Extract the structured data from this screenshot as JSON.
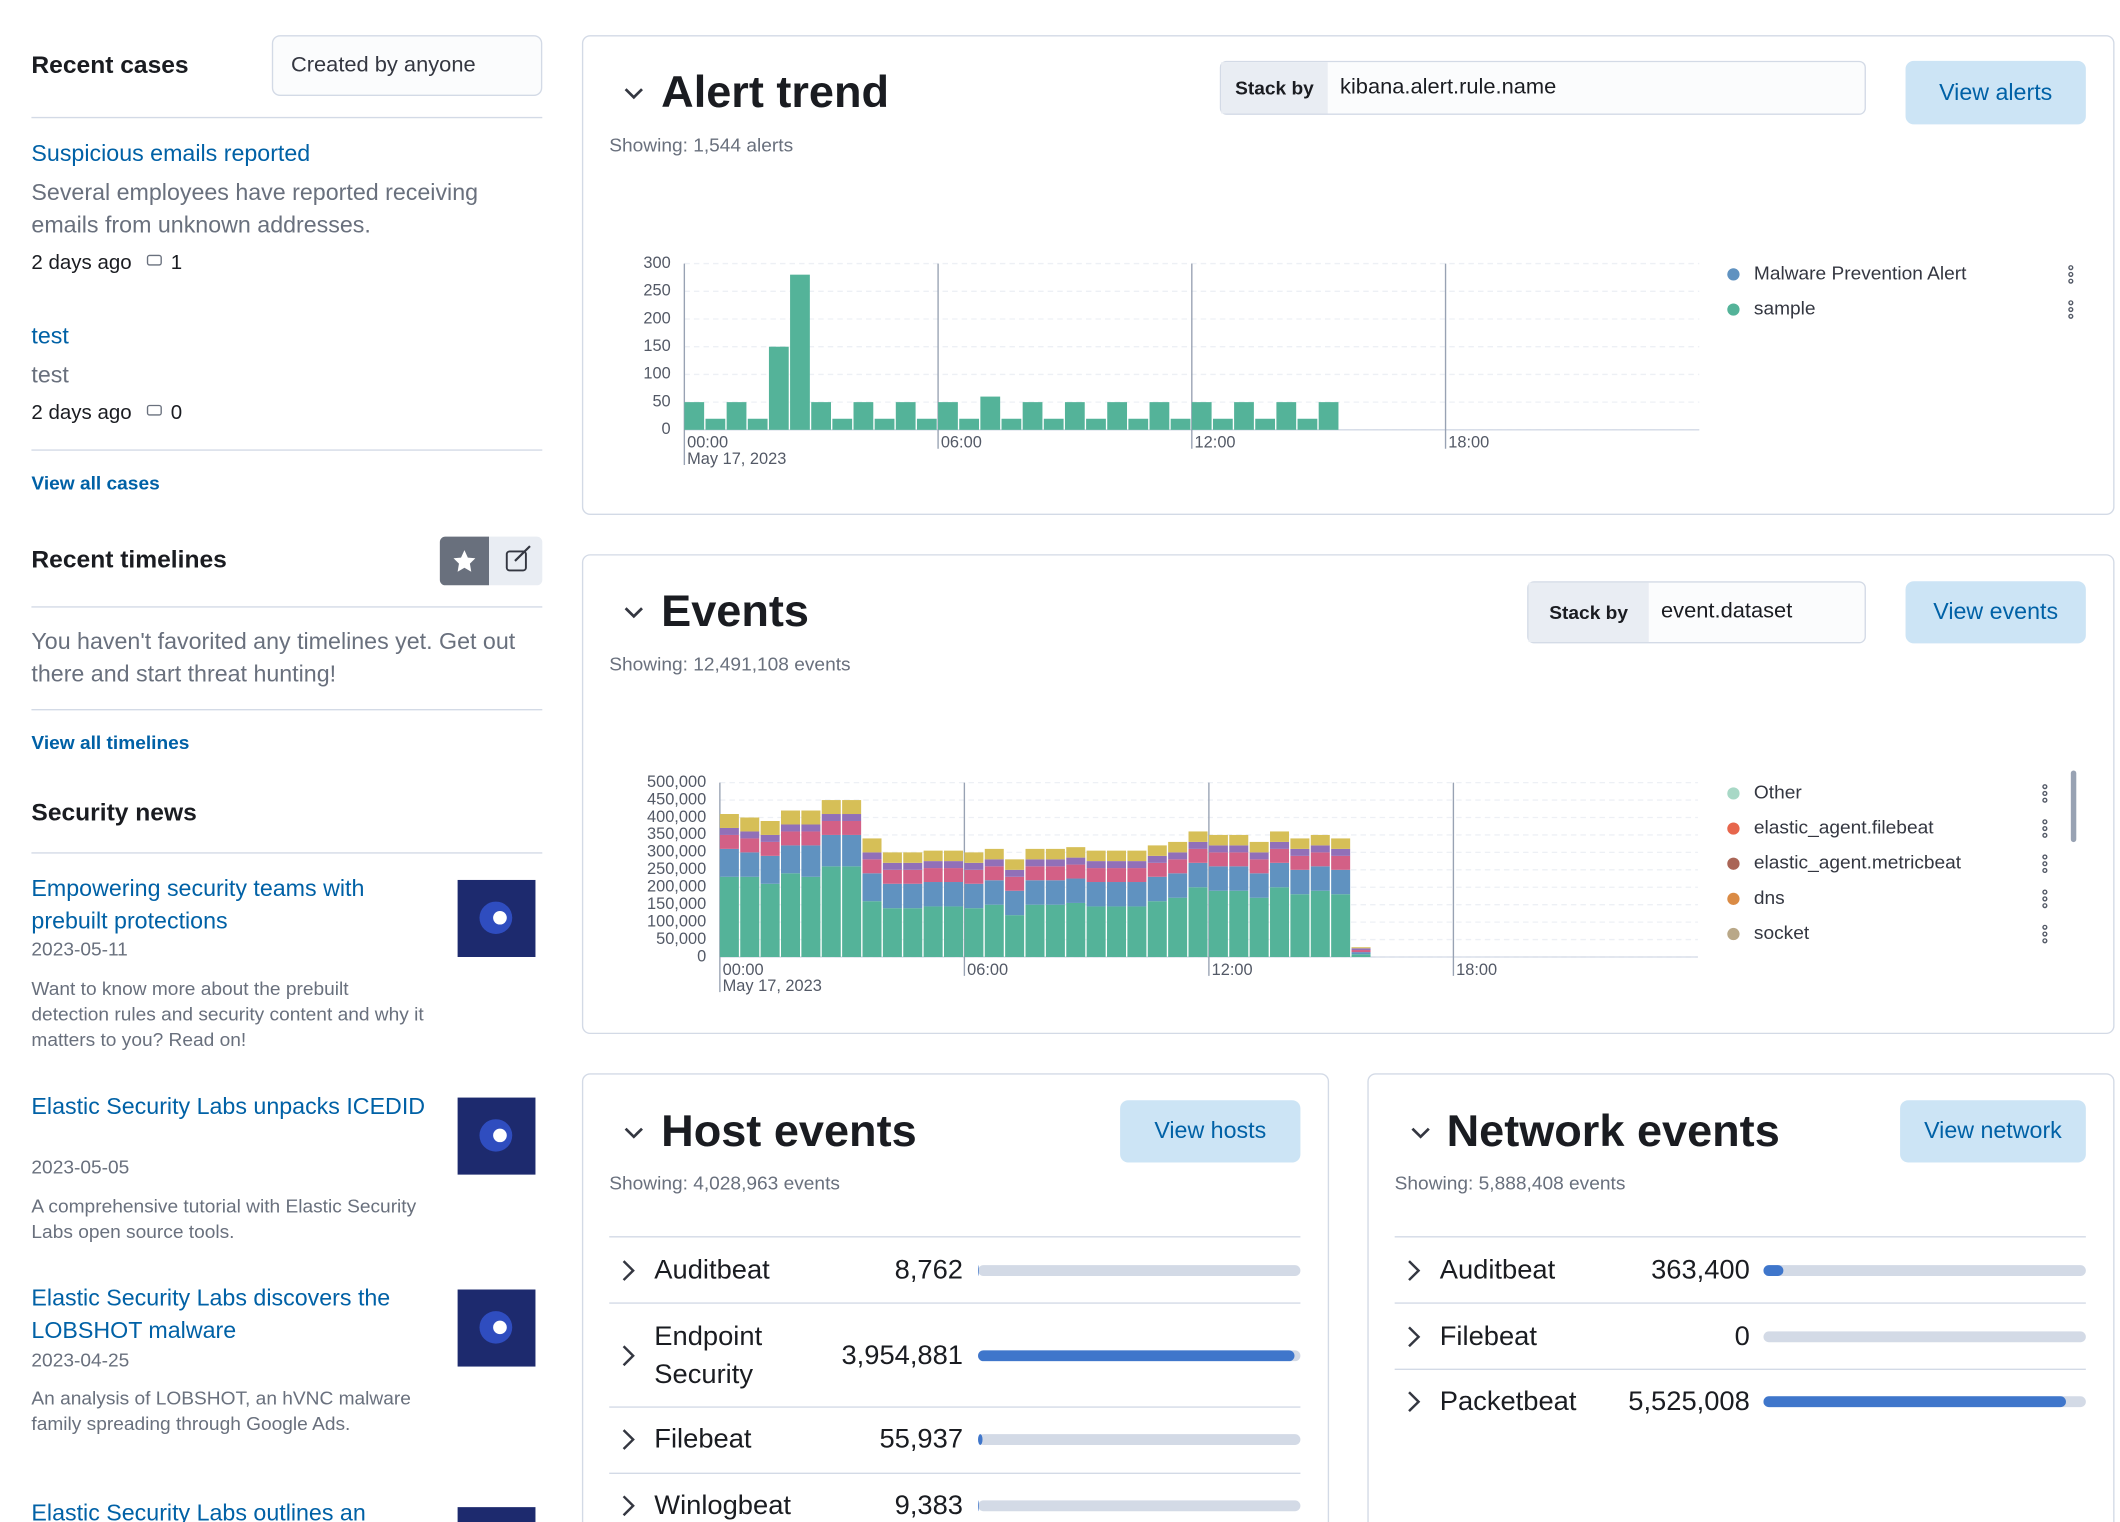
{
  "recent_cases": {
    "title": "Recent cases",
    "filter": "Created by anyone",
    "cases": [
      {
        "title": "Suspicious emails reported",
        "description": "Several employees have reported receiving emails from unknown addresses.",
        "age": "2 days ago",
        "comments": "1"
      },
      {
        "title": "test",
        "description": "test",
        "age": "2 days ago",
        "comments": "0"
      }
    ],
    "view_all": "View all cases"
  },
  "recent_timelines": {
    "title": "Recent timelines",
    "message": "You haven't favorited any timelines yet. Get out there and start threat hunting!",
    "view_all": "View all timelines"
  },
  "security_news": {
    "title": "Security news",
    "items": [
      {
        "title": "Empowering security teams with prebuilt protections",
        "date": "2023-05-11",
        "summary": "Want to know more about the prebuilt detection rules and security content and why it matters to you? Read on!"
      },
      {
        "title": "Elastic Security Labs unpacks ICEDID",
        "date": "2023-05-05",
        "summary": "A comprehensive tutorial with Elastic Security Labs open source tools."
      },
      {
        "title": "Elastic Security Labs discovers the LOBSHOT malware",
        "date": "2023-04-25",
        "summary": "An analysis of LOBSHOT, an hVNC malware family spreading through Google Ads."
      },
      {
        "title": "Elastic Security Labs outlines an"
      }
    ]
  },
  "alert_trend": {
    "type": "bar",
    "title": "Alert trend",
    "stack_by_label": "Stack by",
    "stack_by": "kibana.alert.rule.name",
    "button": "View alerts",
    "subtitle": "Showing: 1,544 alerts",
    "x": [
      0,
      0.5,
      1,
      1.5,
      2,
      2.5,
      3,
      3.5,
      4,
      4.5,
      5,
      5.5,
      6,
      6.5,
      7,
      7.5,
      8,
      8.5,
      9,
      9.5,
      10,
      10.5,
      11,
      11.5,
      12,
      12.5,
      13,
      13.5,
      14,
      14.5,
      15
    ],
    "series": [
      {
        "color": "#54b399",
        "values": [
          50,
          20,
          50,
          20,
          150,
          280,
          50,
          20,
          50,
          20,
          50,
          20,
          50,
          20,
          60,
          20,
          50,
          20,
          50,
          20,
          50,
          20,
          50,
          20,
          50,
          20,
          50,
          20,
          50,
          20,
          50
        ]
      }
    ],
    "legend": [
      {
        "name": "Malware Prevention Alert",
        "color": "#6092c0"
      },
      {
        "name": "sample",
        "color": "#54b399"
      }
    ],
    "xlim": [
      0,
      24
    ],
    "xticks": [
      {
        "value": 0,
        "label": "00:00"
      },
      {
        "value": 6,
        "label": "06:00"
      },
      {
        "value": 12,
        "label": "12:00"
      },
      {
        "value": 18,
        "label": "18:00"
      }
    ],
    "x_sublabel": "May 17, 2023",
    "ylim": [
      0,
      300
    ],
    "yticks": [
      0,
      50,
      100,
      150,
      200,
      250,
      300
    ]
  },
  "events": {
    "type": "stacked_bar",
    "title": "Events",
    "stack_by_label": "Stack by",
    "stack_by": "event.dataset",
    "button": "View events",
    "subtitle": "Showing: 12,491,108 events",
    "x": [
      0,
      0.5,
      1,
      1.5,
      2,
      2.5,
      3,
      3.5,
      4,
      4.5,
      5,
      5.5,
      6,
      6.5,
      7,
      7.5,
      8,
      8.5,
      9,
      9.5,
      10,
      10.5,
      11,
      11.5,
      12,
      12.5,
      13,
      13.5,
      14,
      14.5,
      15,
      15.5
    ],
    "series": [
      {
        "color": "#54b399",
        "values": [
          230000,
          230000,
          210000,
          240000,
          230000,
          260000,
          260000,
          160000,
          140000,
          140000,
          145000,
          145000,
          140000,
          150000,
          120000,
          150000,
          150000,
          155000,
          145000,
          145000,
          145000,
          160000,
          170000,
          200000,
          190000,
          190000,
          170000,
          200000,
          180000,
          190000,
          180000,
          8000
        ]
      },
      {
        "color": "#6092c0",
        "values": [
          80000,
          70000,
          80000,
          80000,
          90000,
          90000,
          90000,
          80000,
          70000,
          70000,
          70000,
          70000,
          70000,
          70000,
          70000,
          70000,
          70000,
          70000,
          70000,
          70000,
          70000,
          70000,
          70000,
          70000,
          70000,
          70000,
          70000,
          70000,
          70000,
          70000,
          70000,
          6000
        ]
      },
      {
        "color": "#d36086",
        "values": [
          40000,
          40000,
          40000,
          40000,
          40000,
          40000,
          40000,
          40000,
          40000,
          40000,
          40000,
          40000,
          40000,
          40000,
          40000,
          40000,
          40000,
          40000,
          40000,
          40000,
          40000,
          40000,
          40000,
          40000,
          40000,
          40000,
          40000,
          40000,
          40000,
          40000,
          40000,
          6000
        ]
      },
      {
        "color": "#9170b8",
        "values": [
          20000,
          20000,
          20000,
          20000,
          20000,
          20000,
          20000,
          20000,
          20000,
          20000,
          20000,
          20000,
          20000,
          20000,
          20000,
          20000,
          20000,
          20000,
          20000,
          20000,
          20000,
          20000,
          20000,
          20000,
          20000,
          20000,
          20000,
          20000,
          20000,
          20000,
          20000,
          5000
        ]
      },
      {
        "color": "#d6bf57",
        "values": [
          40000,
          40000,
          40000,
          40000,
          40000,
          40000,
          40000,
          40000,
          30000,
          30000,
          30000,
          30000,
          30000,
          30000,
          30000,
          30000,
          30000,
          30000,
          30000,
          30000,
          30000,
          30000,
          30000,
          30000,
          30000,
          30000,
          30000,
          30000,
          30000,
          30000,
          30000,
          3000
        ]
      }
    ],
    "legend": [
      {
        "name": "Other",
        "color": "#a8d8c6"
      },
      {
        "name": "elastic_agent.filebeat",
        "color": "#e7664c"
      },
      {
        "name": "elastic_agent.metricbeat",
        "color": "#aa6556"
      },
      {
        "name": "dns",
        "color": "#da8b45"
      },
      {
        "name": "socket",
        "color": "#b9a888"
      }
    ],
    "xlim": [
      0,
      24
    ],
    "xticks": [
      {
        "value": 0,
        "label": "00:00"
      },
      {
        "value": 6,
        "label": "06:00"
      },
      {
        "value": 12,
        "label": "12:00"
      },
      {
        "value": 18,
        "label": "18:00"
      }
    ],
    "x_sublabel": "May 17, 2023",
    "ylim": [
      0,
      500000
    ],
    "yticks": [
      0,
      {
        "value": 50000,
        "label": "50,000"
      },
      {
        "value": 100000,
        "label": "100,000"
      },
      {
        "value": 150000,
        "label": "150,000"
      },
      {
        "value": 200000,
        "label": "200,000"
      },
      {
        "value": 250000,
        "label": "250,000"
      },
      {
        "value": 300000,
        "label": "300,000"
      },
      {
        "value": 350000,
        "label": "350,000"
      },
      {
        "value": 400000,
        "label": "400,000"
      },
      {
        "value": 450000,
        "label": "450,000"
      },
      {
        "value": 500000,
        "label": "500,000"
      }
    ]
  },
  "host_events": {
    "title": "Host events",
    "button": "View hosts",
    "subtitle": "Showing: 4,028,963 events",
    "names": [
      "Auditbeat",
      "Endpoint Security",
      "Filebeat",
      "Winlogbeat"
    ],
    "values": [
      8762,
      3954881,
      55937,
      9383
    ],
    "value_labels": [
      "8,762",
      "3,954,881",
      "55,937",
      "9,383"
    ]
  },
  "network_events": {
    "title": "Network events",
    "button": "View network",
    "subtitle": "Showing: 5,888,408 events",
    "names": [
      "Auditbeat",
      "Filebeat",
      "Packetbeat"
    ],
    "values": [
      363400,
      0,
      5525008
    ],
    "value_labels": [
      "363,400",
      "0",
      "5,525,008"
    ]
  }
}
